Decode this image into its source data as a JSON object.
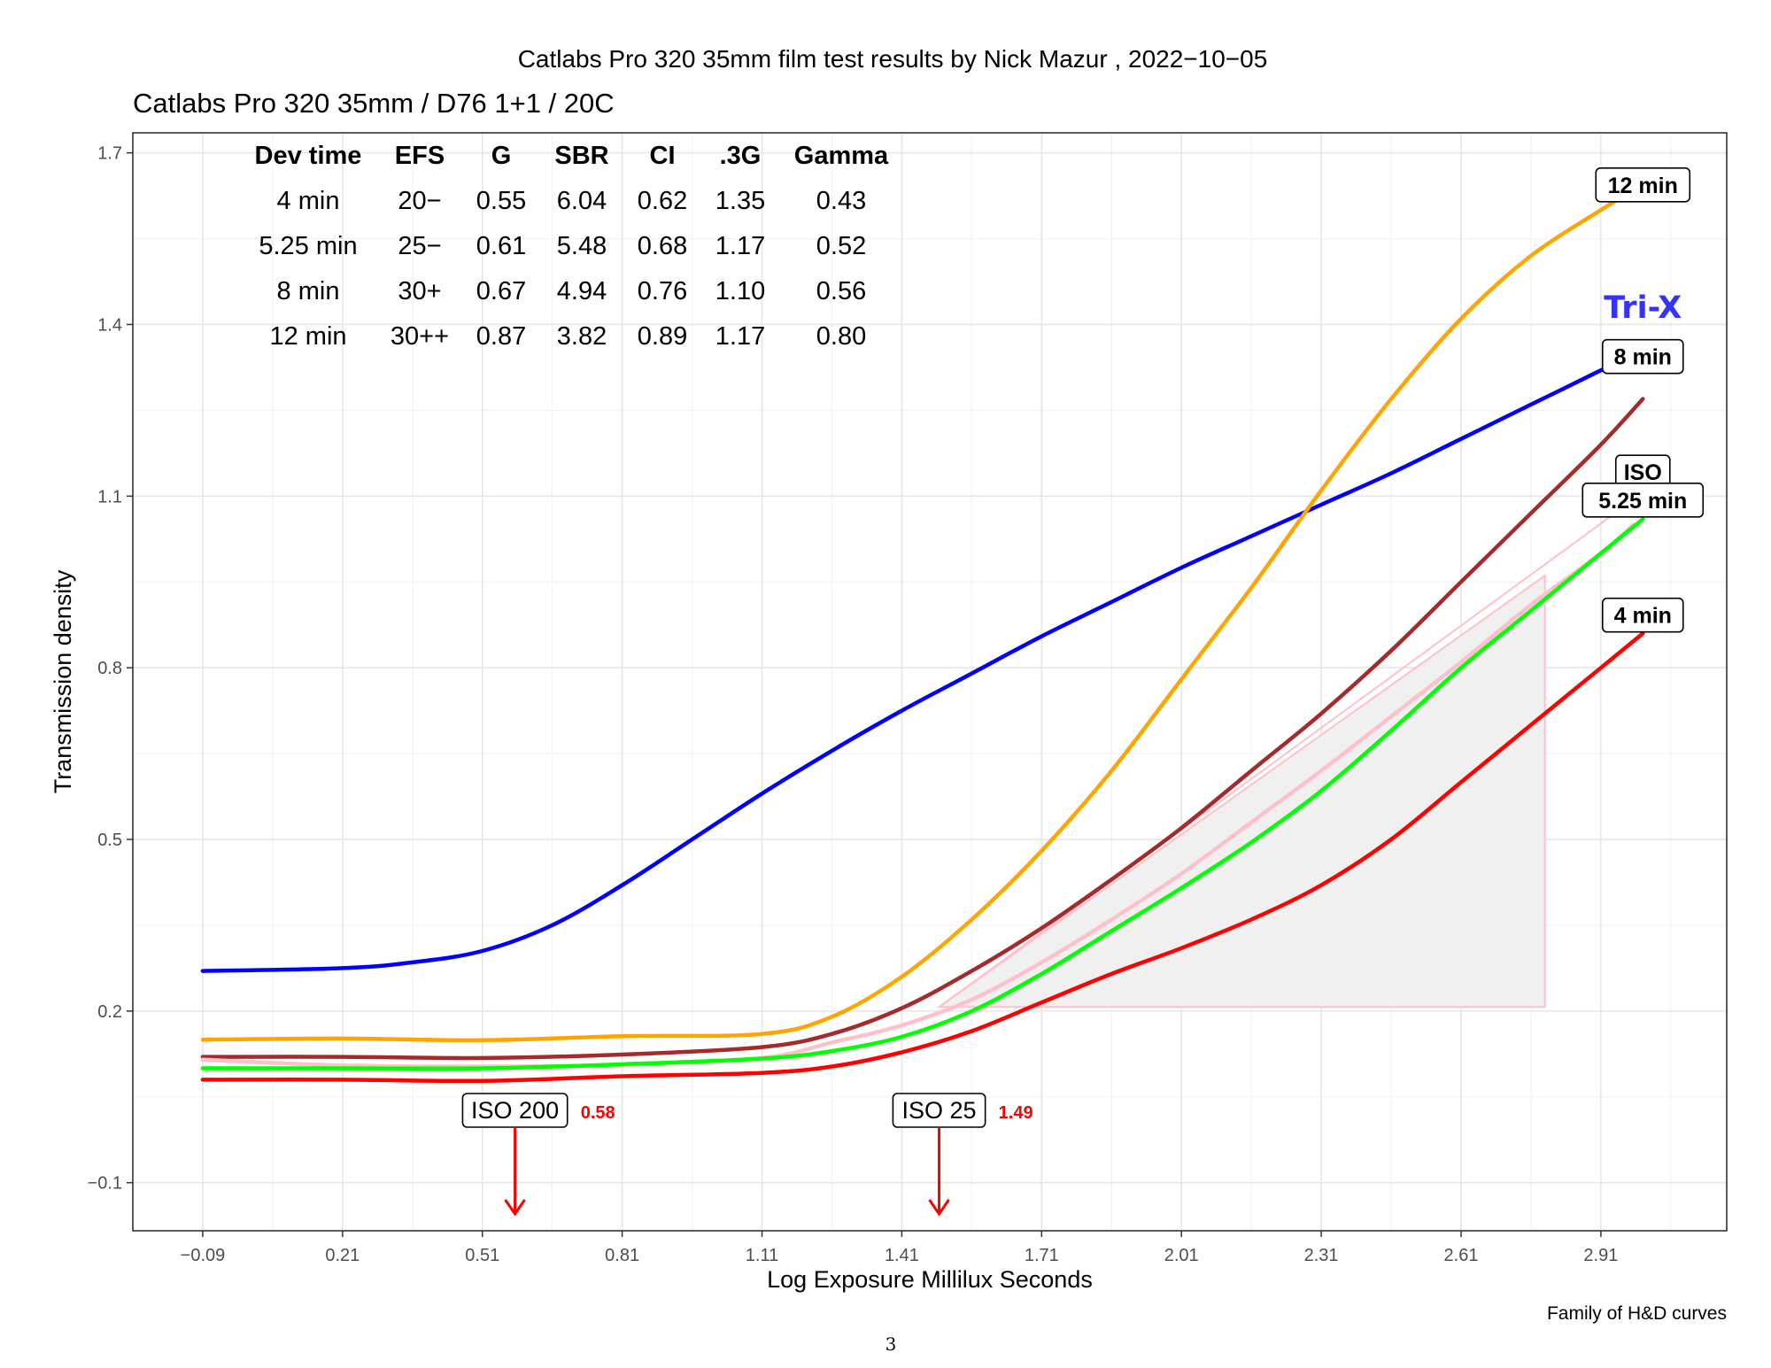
{
  "page": {
    "page_number": "3",
    "caption": "Family of H&D curves"
  },
  "chart_data": {
    "type": "line",
    "title": "Catlabs Pro 320 35mm film test results by Nick Mazur , 2022−10−05",
    "subtitle": "Catlabs Pro 320 35mm / D76 1+1 / 20C",
    "xlabel": "Log Exposure Millilux Seconds",
    "ylabel": "Transmission density",
    "xlim": [
      -0.24,
      3.18
    ],
    "ylim": [
      -0.184,
      1.735
    ],
    "x_ticks": [
      -0.09,
      0.21,
      0.51,
      0.81,
      1.11,
      1.41,
      1.71,
      2.01,
      2.31,
      2.61,
      2.91
    ],
    "x_tick_labels": [
      "−0.09",
      "0.21",
      "0.51",
      "0.81",
      "1.11",
      "1.41",
      "1.71",
      "2.01",
      "2.31",
      "2.61",
      "2.91"
    ],
    "y_ticks": [
      -0.1,
      0.2,
      0.5,
      0.8,
      1.1,
      1.4,
      1.7
    ],
    "y_tick_labels": [
      "−0.1",
      "0.2",
      "0.5",
      "0.8",
      "1.1",
      "1.4",
      "1.7"
    ],
    "grid": true,
    "series": [
      {
        "name": "Tri-X",
        "color": "#0000ff",
        "x": [
          -0.09,
          0.21,
          0.36,
          0.51,
          0.66,
          0.81,
          0.96,
          1.11,
          1.26,
          1.41,
          1.56,
          1.71,
          1.86,
          2.01,
          2.16,
          2.31,
          2.46,
          2.61,
          2.76,
          2.91,
          2.94
        ],
        "y": [
          0.27,
          0.275,
          0.285,
          0.305,
          0.35,
          0.42,
          0.5,
          0.58,
          0.655,
          0.725,
          0.79,
          0.855,
          0.915,
          0.975,
          1.03,
          1.085,
          1.14,
          1.2,
          1.26,
          1.32,
          1.335
        ]
      },
      {
        "name": "12 min",
        "color": "#ffa500",
        "x": [
          -0.09,
          0.21,
          0.51,
          0.81,
          1.11,
          1.26,
          1.41,
          1.56,
          1.71,
          1.86,
          2.01,
          2.16,
          2.31,
          2.46,
          2.61,
          2.76,
          2.91,
          2.95
        ],
        "y": [
          0.15,
          0.152,
          0.149,
          0.156,
          0.16,
          0.19,
          0.26,
          0.36,
          0.48,
          0.62,
          0.78,
          0.94,
          1.11,
          1.27,
          1.41,
          1.52,
          1.6,
          1.62
        ]
      },
      {
        "name": "8 min",
        "color": "#a52a2a",
        "x": [
          -0.09,
          0.21,
          0.51,
          0.81,
          1.11,
          1.26,
          1.41,
          1.56,
          1.71,
          1.86,
          2.01,
          2.16,
          2.31,
          2.46,
          2.61,
          2.76,
          2.91,
          3.0
        ],
        "y": [
          0.12,
          0.12,
          0.118,
          0.124,
          0.137,
          0.16,
          0.205,
          0.27,
          0.345,
          0.43,
          0.52,
          0.62,
          0.72,
          0.83,
          0.95,
          1.07,
          1.19,
          1.27
        ]
      },
      {
        "name": "ISO",
        "color": "#ffc0cb",
        "x": [
          -0.09,
          0.21,
          0.51,
          0.81,
          1.11,
          1.26,
          1.41,
          1.56,
          1.71,
          1.86,
          2.01,
          2.16,
          2.31,
          2.46,
          2.61,
          2.76,
          2.91,
          2.98
        ],
        "y": [
          0.115,
          0.105,
          0.103,
          0.106,
          0.118,
          0.145,
          0.175,
          0.22,
          0.285,
          0.36,
          0.44,
          0.53,
          0.62,
          0.715,
          0.81,
          0.91,
          1.0,
          1.05
        ]
      },
      {
        "name": "5.25 min",
        "color": "#00ff00",
        "x": [
          -0.09,
          0.21,
          0.51,
          0.81,
          1.11,
          1.26,
          1.41,
          1.56,
          1.71,
          1.86,
          2.01,
          2.16,
          2.31,
          2.46,
          2.61,
          2.76,
          2.91,
          3.0
        ],
        "y": [
          0.1,
          0.1,
          0.1,
          0.107,
          0.117,
          0.13,
          0.155,
          0.2,
          0.265,
          0.34,
          0.415,
          0.495,
          0.585,
          0.69,
          0.8,
          0.9,
          1.0,
          1.06
        ]
      },
      {
        "name": "4 min",
        "color": "#ff0000",
        "x": [
          -0.09,
          0.21,
          0.51,
          0.81,
          1.11,
          1.26,
          1.41,
          1.56,
          1.71,
          1.86,
          2.01,
          2.16,
          2.31,
          2.46,
          2.61,
          2.76,
          2.91,
          3.0
        ],
        "y": [
          0.08,
          0.08,
          0.078,
          0.086,
          0.092,
          0.103,
          0.128,
          0.165,
          0.215,
          0.265,
          0.31,
          0.36,
          0.42,
          0.5,
          0.6,
          0.7,
          0.8,
          0.86
        ]
      }
    ],
    "iso_triangle": {
      "x": [
        1.49,
        2.79,
        2.79
      ],
      "y": [
        0.207,
        0.207,
        0.961
      ],
      "fill": "#f0f0f0",
      "stroke": "#ffc0cb"
    },
    "iso_line": {
      "x": [
        1.49,
        2.94
      ],
      "y": [
        0.207,
        1.07
      ],
      "color": "#ffc0cb"
    },
    "curve_labels": [
      {
        "text": "12 min",
        "x": 3.0,
        "y": 1.644
      },
      {
        "text": "8 min",
        "x": 3.0,
        "y": 1.344
      },
      {
        "text": "ISO",
        "x": 3.0,
        "y": 1.142
      },
      {
        "text": "5.25 min",
        "x": 3.0,
        "y": 1.093
      },
      {
        "text": "4 min",
        "x": 3.0,
        "y": 0.892
      }
    ],
    "trix_label": {
      "text": "Tri-X",
      "x": 3.0,
      "y": 1.43,
      "color": "#3333ff"
    },
    "iso_markers": [
      {
        "label": "ISO 200",
        "value_label": "0.58",
        "x": 0.58
      },
      {
        "label": "ISO 25",
        "value_label": "1.49",
        "x": 1.49
      }
    ],
    "marker_color": "#ff0000",
    "table": {
      "headers": [
        "Dev time",
        "EFS",
        "G",
        "SBR",
        "CI",
        ".3G",
        "Gamma"
      ],
      "rows": [
        [
          "4 min",
          "20−",
          "0.55",
          "6.04",
          "0.62",
          "1.35",
          "0.43"
        ],
        [
          "5.25 min",
          "25−",
          "0.61",
          "5.48",
          "0.68",
          "1.17",
          "0.52"
        ],
        [
          "8 min",
          "30+",
          "0.67",
          "4.94",
          "0.76",
          "1.10",
          "0.56"
        ],
        [
          "12 min",
          "30++",
          "0.87",
          "3.82",
          "0.89",
          "1.17",
          "0.80"
        ]
      ]
    }
  }
}
